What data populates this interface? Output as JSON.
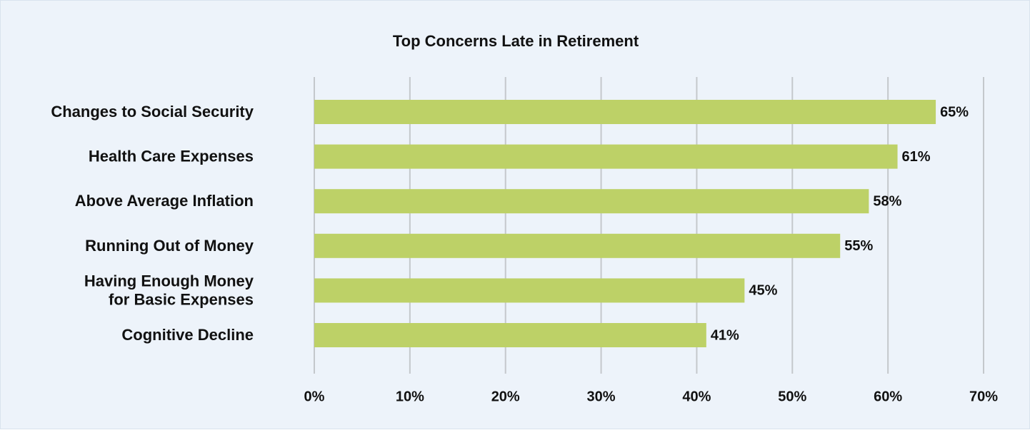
{
  "chart_data": {
    "type": "bar",
    "orientation": "horizontal",
    "title": "Top Concerns Late in Retirement",
    "categories": [
      "Changes to Social Security",
      "Health Care Expenses",
      "Above Average Inflation",
      "Running Out of Money",
      "Having Enough Money for Basic Expenses",
      "Cognitive Decline"
    ],
    "category_lines": [
      [
        "Changes to Social Security"
      ],
      [
        "Health Care Expenses"
      ],
      [
        "Above Average Inflation"
      ],
      [
        "Running Out of Money"
      ],
      [
        "Having Enough Money",
        "for Basic Expenses"
      ],
      [
        "Cognitive Decline"
      ]
    ],
    "values": [
      65,
      61,
      58,
      55,
      45,
      41
    ],
    "value_labels": [
      "65%",
      "61%",
      "58%",
      "55%",
      "45%",
      "41%"
    ],
    "xlim": [
      0,
      70
    ],
    "xticks": [
      0,
      10,
      20,
      30,
      40,
      50,
      60,
      70
    ],
    "xtick_labels": [
      "0%",
      "10%",
      "20%",
      "30%",
      "40%",
      "50%",
      "60%",
      "70%"
    ],
    "grid": true,
    "legend": false,
    "colors": {
      "bar": "#bdd167",
      "grid": "#c4c8cc",
      "background": "#edf3fa",
      "text": "#111111"
    }
  }
}
